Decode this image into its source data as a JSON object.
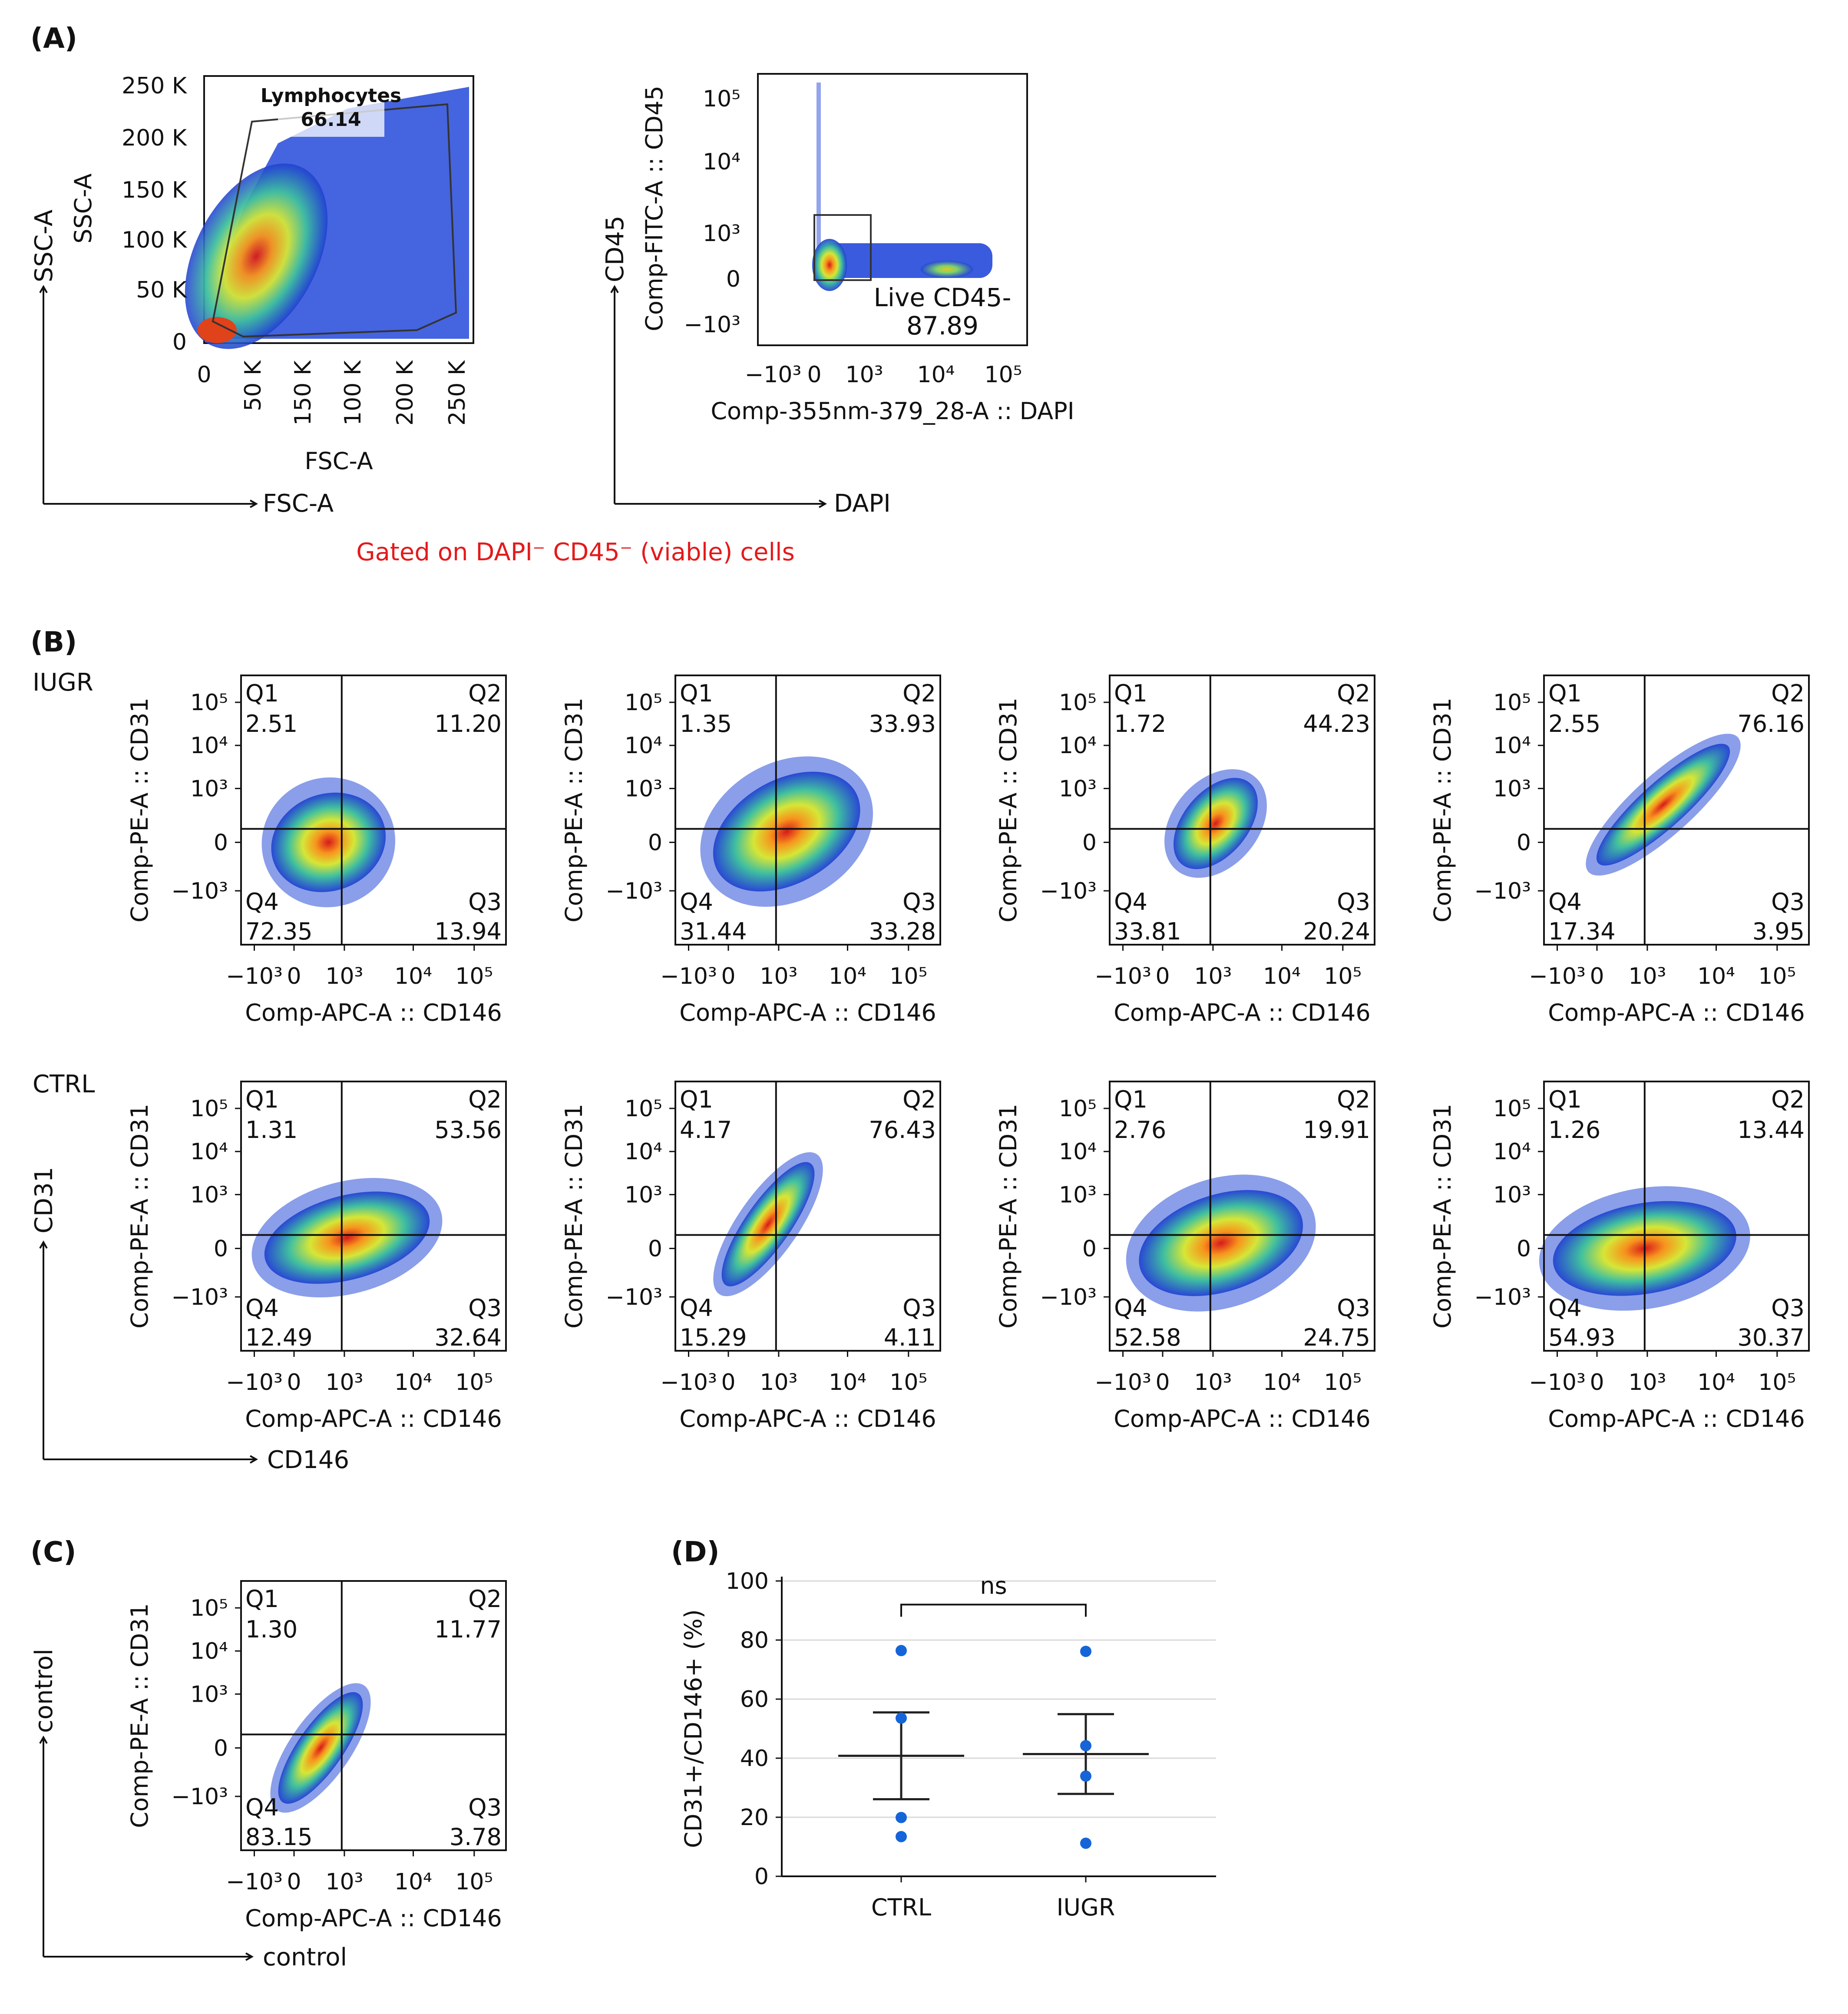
{
  "panel_labels": {
    "A": "(A)",
    "B": "(B)",
    "C": "(C)",
    "D": "(D)"
  },
  "panelA": {
    "fsc_ssc": {
      "xlabel": "FSC-A",
      "ylabel": "SSC-A",
      "xticks": [
        "0",
        "50 K",
        "150 K",
        "100 K",
        "200 K",
        "250 K"
      ],
      "yticks": [
        "250 K",
        "200 K",
        "150 K",
        "100 K",
        "50 K",
        "0"
      ],
      "gate_name": "Lymphocytes",
      "gate_value": "66.14",
      "outer_x": "FSC-A",
      "outer_y": "SSC-A"
    },
    "dapi_cd45": {
      "xlabel": "Comp-355nm-379_28-A :: DAPI",
      "ylabel": "Comp-FITC-A :: CD45",
      "xticks": [
        "−10³",
        "0",
        "10³",
        "10⁴",
        "10⁵"
      ],
      "yticks": [
        "10⁵",
        "10⁴",
        "10³",
        "0",
        "−10³"
      ],
      "gate_name": "Live CD45-",
      "gate_value": "87.89",
      "outer_x": "DAPI",
      "outer_y": "CD45"
    },
    "note": "Gated on DAPI⁻ CD45⁻ (viable) cells"
  },
  "panelB": {
    "row_labels": [
      "IUGR",
      "CTRL"
    ],
    "outer_x": "CD146",
    "outer_y": "CD31",
    "xlabel": "Comp-APC-A :: CD146",
    "ylabel": "Comp-PE-A :: CD31",
    "xticks": [
      "−10³",
      "0",
      "10³",
      "10⁴",
      "10⁵"
    ],
    "yticks": [
      "10⁵",
      "10⁴",
      "10³",
      "0",
      "−10³"
    ],
    "plots": [
      {
        "group": "IUGR",
        "Q1": "2.51",
        "Q2": "11.20",
        "Q3": "13.94",
        "Q4": "72.35"
      },
      {
        "group": "IUGR",
        "Q1": "1.35",
        "Q2": "33.93",
        "Q3": "33.28",
        "Q4": "31.44"
      },
      {
        "group": "IUGR",
        "Q1": "1.72",
        "Q2": "44.23",
        "Q3": "20.24",
        "Q4": "33.81"
      },
      {
        "group": "IUGR",
        "Q1": "2.55",
        "Q2": "76.16",
        "Q3": "3.95",
        "Q4": "17.34"
      },
      {
        "group": "CTRL",
        "Q1": "1.31",
        "Q2": "53.56",
        "Q3": "32.64",
        "Q4": "12.49"
      },
      {
        "group": "CTRL",
        "Q1": "4.17",
        "Q2": "76.43",
        "Q3": "4.11",
        "Q4": "15.29"
      },
      {
        "group": "CTRL",
        "Q1": "2.76",
        "Q2": "19.91",
        "Q3": "24.75",
        "Q4": "52.58"
      },
      {
        "group": "CTRL",
        "Q1": "1.26",
        "Q2": "13.44",
        "Q3": "30.37",
        "Q4": "54.93"
      }
    ]
  },
  "panelC": {
    "outer_x": "control",
    "outer_y": "control",
    "plot": {
      "group": "control",
      "Q1": "1.30",
      "Q2": "11.77",
      "Q3": "3.78",
      "Q4": "83.15"
    }
  },
  "quadrant_names": {
    "Q1": "Q1",
    "Q2": "Q2",
    "Q3": "Q3",
    "Q4": "Q4"
  },
  "chart_data": {
    "type": "scatter",
    "title": "",
    "xlabel": "",
    "ylabel": "CD31+/CD146+ (%)",
    "categories": [
      "CTRL",
      "IUGR"
    ],
    "ylim": [
      0,
      100
    ],
    "yticks": [
      "0",
      "20",
      "40",
      "60",
      "80",
      "100"
    ],
    "grid": true,
    "series": [
      {
        "name": "CTRL",
        "points": [
          76.43,
          53.56,
          19.91,
          13.44
        ],
        "mean": 40.8,
        "error_upper": 55.5,
        "error_lower": 26.1
      },
      {
        "name": "IUGR",
        "points": [
          76.16,
          44.23,
          33.93,
          11.2
        ],
        "mean": 41.4,
        "error_upper": 54.9,
        "error_lower": 27.9
      }
    ],
    "annotation": "ns"
  }
}
